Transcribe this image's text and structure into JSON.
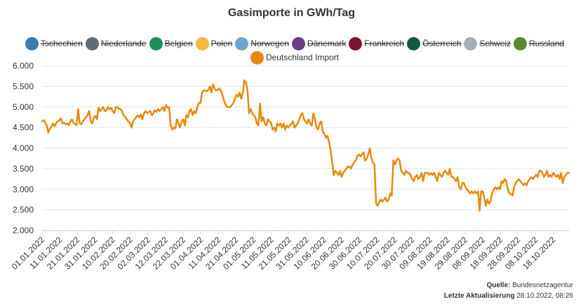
{
  "chart_data": {
    "type": "line",
    "title": "Gasimporte in GWh/Tag",
    "ylim": [
      2000,
      6000
    ],
    "y_ticks": [
      "6.000",
      "5.500",
      "5.000",
      "4.500",
      "4.000",
      "3.500",
      "3.000",
      "2.500",
      "2.000"
    ],
    "x_ticks": [
      "01.01.2022",
      "11.01.2022",
      "21.01.2022",
      "31.01.2022",
      "10.02.2022",
      "20.02.2022",
      "02.03.2022",
      "12.03.2022",
      "22.03.2022",
      "01.04.2022",
      "11.04.2022",
      "21.04.2022",
      "01.05.2022",
      "11.05.2022",
      "21.05.2022",
      "31.05.2022",
      "10.06.2022",
      "20.06.2022",
      "30.06.2022",
      "10.07.2022",
      "20.07.2022",
      "30.07.2022",
      "09.08.2022",
      "19.08.2022",
      "29.08.2022",
      "08.09.2022",
      "18.09.2022",
      "28.09.2022",
      "08.10.2022",
      "18.10.2022"
    ],
    "x_start": "01.01.2022",
    "x_end": "27.10.2022",
    "legend": [
      {
        "name": "Tschechien",
        "color": "#3b7bb0",
        "hidden": true
      },
      {
        "name": "Niederlande",
        "color": "#5f6c72",
        "hidden": true
      },
      {
        "name": "Belgien",
        "color": "#1e8f5a",
        "hidden": true
      },
      {
        "name": "Polen",
        "color": "#f5b942",
        "hidden": true
      },
      {
        "name": "Norwegen",
        "color": "#6fa3d0",
        "hidden": true
      },
      {
        "name": "Dänemark",
        "color": "#6a3d8c",
        "hidden": true
      },
      {
        "name": "Frankreich",
        "color": "#7a1230",
        "hidden": true
      },
      {
        "name": "Österreich",
        "color": "#0f5a45",
        "hidden": true
      },
      {
        "name": "Schweiz",
        "color": "#a5b0b5",
        "hidden": true
      },
      {
        "name": "Russland",
        "color": "#5c8a2e",
        "hidden": true
      },
      {
        "name": "Deutschland Import",
        "color": "#e8890c",
        "hidden": false
      }
    ],
    "series": [
      {
        "name": "Deutschland Import",
        "color": "#e8890c",
        "values": [
          4650,
          4680,
          4620,
          4550,
          4380,
          4480,
          4520,
          4600,
          4530,
          4610,
          4650,
          4680,
          4720,
          4600,
          4620,
          4580,
          4600,
          4560,
          4650,
          4700,
          4620,
          4580,
          4560,
          4950,
          4600,
          4580,
          4650,
          4700,
          4750,
          4800,
          4900,
          4650,
          4600,
          4750,
          4780,
          4700,
          4980,
          4900,
          4950,
          5000,
          4900,
          4920,
          5000,
          4950,
          4980,
          4900,
          4850,
          5000,
          5000,
          4950,
          4950,
          4900,
          4800,
          4750,
          4700,
          4650,
          4620,
          4500,
          4650,
          4700,
          4750,
          4800,
          4750,
          4820,
          4700,
          4850,
          4900,
          4850,
          4880,
          4900,
          4800,
          4850,
          4920,
          4880,
          4950,
          4900,
          4950,
          5000,
          4900,
          5050,
          4980,
          5000,
          4550,
          4450,
          4500,
          4480,
          4700,
          4600,
          4500,
          4650,
          4700,
          4550,
          4800,
          4750,
          4900,
          4950,
          4800,
          4900,
          4850,
          5000,
          5100,
          5100,
          5350,
          5400,
          5400,
          5380,
          5420,
          5500,
          5350,
          5550,
          5450,
          5400,
          5420,
          5450,
          5400,
          5300,
          5150,
          5050,
          5000,
          5000,
          5000,
          5050,
          5100,
          5200,
          5300,
          5250,
          5350,
          5200,
          5350,
          5650,
          5600,
          5400,
          4850,
          4950,
          4850,
          4800,
          4750,
          4600,
          4550,
          5080,
          4650,
          4750,
          4600,
          4550,
          4700,
          4650,
          4620,
          4450,
          4500,
          4400,
          4600,
          4550,
          4600,
          4500,
          4600,
          4450,
          4550,
          4500,
          4550,
          4600,
          4650,
          4500,
          4550,
          4600,
          4700,
          4800,
          4850,
          4700,
          4650,
          4600,
          4700,
          4600,
          4550,
          4850,
          4700,
          4500,
          4450,
          4600,
          4650,
          4400,
          4350,
          4250,
          4300,
          4150,
          3950,
          3650,
          3350,
          3450,
          3400,
          3350,
          3450,
          3300,
          3400,
          3450,
          3500,
          3550,
          3550,
          3500,
          3600,
          3650,
          3700,
          3800,
          3850,
          3800,
          3850,
          3900,
          3700,
          3750,
          3850,
          4000,
          3750,
          3650,
          3600,
          2650,
          2600,
          2700,
          2750,
          2700,
          2750,
          2800,
          2700,
          2750,
          2900,
          2850,
          3700,
          3600,
          3700,
          3750,
          3700,
          3450,
          3400,
          3350,
          3450,
          3400,
          3400,
          3350,
          3250,
          3200,
          3300,
          3350,
          3250,
          3300,
          3400,
          3200,
          3400,
          3400,
          3400,
          3350,
          3400,
          3350,
          3400,
          3300,
          3200,
          3400,
          3350,
          3300,
          3400,
          3450,
          3400,
          3350,
          3500,
          3300,
          3300,
          3250,
          3200,
          3300,
          3050,
          3000,
          3150,
          3150,
          3050,
          3000,
          2950,
          2900,
          2950,
          2900,
          2950,
          2900,
          2950,
          2480,
          2950,
          2950,
          2800,
          2600,
          2750,
          2650,
          2700,
          2900,
          3000,
          3050,
          3000,
          3050,
          3000,
          3200,
          3150,
          3250,
          3200,
          3000,
          2900,
          2880,
          2850,
          3050,
          3150,
          3200,
          3250,
          3200,
          3150,
          3100,
          3150,
          3100,
          3200,
          3250,
          3300,
          3250,
          3300,
          3350,
          3300,
          3450,
          3450,
          3400,
          3300,
          3350,
          3450,
          3300,
          3350,
          3300,
          3400,
          3350,
          3300,
          3350,
          3250,
          3400,
          3150,
          3300,
          3350,
          3400,
          3400
        ]
      }
    ]
  },
  "credits": {
    "source_label": "Quelle:",
    "source_value": "Bundesnetzagentur",
    "updated_label": "Letzte Aktualisierung",
    "updated_value": "28.10.2022, 08:26"
  }
}
